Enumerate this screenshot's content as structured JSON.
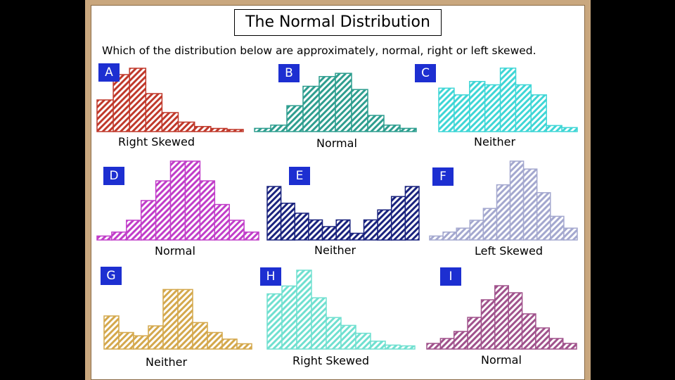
{
  "title": "The Normal Distribution",
  "question": "Which of the distribution below are approximately, normal, right or left skewed.",
  "chart_data": [
    {
      "type": "bar",
      "label": "A",
      "answer": "Right Skewed",
      "color": "#c0392b",
      "values": [
        5,
        9,
        10,
        6,
        3,
        1.5,
        0.8,
        0.5,
        0.3
      ],
      "ylim": [
        0,
        10
      ]
    },
    {
      "type": "bar",
      "label": "B",
      "answer": "Normal",
      "color": "#2e9e8f",
      "values": [
        0.5,
        1,
        4,
        7,
        8.5,
        9,
        6.5,
        2.5,
        1,
        0.5
      ],
      "ylim": [
        0,
        10
      ]
    },
    {
      "type": "bar",
      "label": "C",
      "answer": "Neither",
      "color": "#3fd6d6",
      "values": [
        6.5,
        5.5,
        7.5,
        7,
        9.5,
        7,
        5.5,
        0.9,
        0.6
      ],
      "ylim": [
        0,
        10
      ]
    },
    {
      "type": "bar",
      "label": "D",
      "answer": "Normal",
      "color": "#c13ec9",
      "values": [
        0.5,
        1,
        2.5,
        5,
        7.5,
        10,
        10,
        7.5,
        4.5,
        2.5,
        1
      ],
      "ylim": [
        0,
        10
      ]
    },
    {
      "type": "bar",
      "label": "E",
      "answer": "Neither",
      "color": "#1a237e",
      "values": [
        8,
        5.5,
        4,
        3,
        2,
        3,
        1,
        3,
        4.5,
        6.5,
        8
      ],
      "ylim": [
        0,
        10
      ]
    },
    {
      "type": "bar",
      "label": "F",
      "answer": "Left Skewed",
      "color": "#a4a8cf",
      "values": [
        0.5,
        1,
        1.5,
        2.5,
        4,
        7,
        10,
        9,
        6,
        3,
        1.5
      ],
      "ylim": [
        0,
        10
      ]
    },
    {
      "type": "bar",
      "label": "G",
      "answer": "Neither",
      "color": "#d4a84c",
      "values": [
        5,
        2.5,
        2,
        3.5,
        9,
        9,
        4,
        2.5,
        1.5,
        0.8
      ],
      "ylim": [
        0,
        10
      ]
    },
    {
      "type": "bar",
      "label": "H",
      "answer": "Right Skewed",
      "color": "#70e0d0",
      "values": [
        7,
        8,
        10,
        6.5,
        4,
        3,
        2,
        1,
        0.5,
        0.4
      ],
      "ylim": [
        0,
        10
      ]
    },
    {
      "type": "bar",
      "label": "I",
      "answer": "Normal",
      "color": "#a0528c",
      "values": [
        0.8,
        1.5,
        2.5,
        4.5,
        7,
        9,
        8,
        5,
        3,
        1.5,
        0.8
      ],
      "ylim": [
        0,
        10
      ]
    }
  ]
}
